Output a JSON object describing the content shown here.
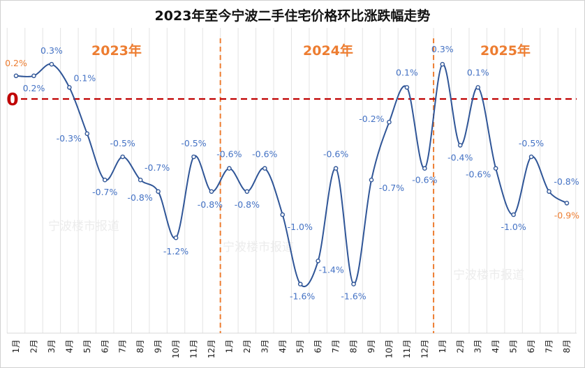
{
  "chart_data": {
    "type": "line",
    "title": "2023年至今宁波二手住宅价格环比涨跌幅走势",
    "xlabel": "",
    "ylabel": "",
    "ylim": [
      -2.0,
      0.4
    ],
    "grid": "vertical",
    "zero_label": "0",
    "year_labels": [
      "2023年",
      "2024年",
      "2025年"
    ],
    "watermark": "宁波楼市报道",
    "categories": [
      "1月",
      "2月",
      "3月",
      "4月",
      "5月",
      "6月",
      "7月",
      "8月",
      "9月",
      "10月",
      "11月",
      "12月",
      "1月",
      "2月",
      "3月",
      "4月",
      "5月",
      "6月",
      "7月",
      "8月",
      "9月",
      "10月",
      "11月",
      "12月",
      "1月",
      "2月",
      "3月",
      "4月",
      "5月",
      "6月",
      "7月",
      "8月"
    ],
    "series": [
      {
        "name": "环比涨跌幅",
        "values": [
          0.2,
          0.2,
          0.3,
          0.1,
          -0.3,
          -0.7,
          -0.5,
          -0.7,
          -0.8,
          -1.2,
          -0.5,
          -0.8,
          -0.6,
          -0.8,
          -0.6,
          -1.0,
          -1.6,
          -1.4,
          -0.6,
          -1.6,
          -0.7,
          -0.2,
          0.1,
          -0.6,
          0.3,
          -0.4,
          0.1,
          -0.6,
          -1.0,
          -0.5,
          -0.8,
          -0.9
        ],
        "labels": [
          "0.2%",
          "0.2%",
          "0.3%",
          "0.1%",
          "-0.3%",
          "-0.7%",
          "-0.5%",
          "-0.7%",
          "-0.8%",
          "-1.2%",
          "-0.5%",
          "-0.8%",
          "-0.6%",
          "-0.8%",
          "-0.6%",
          "-1.0%",
          "-1.6%",
          "-1.4%",
          "-0.6%",
          "-1.6%",
          "-0.7%",
          "-0.2%",
          "0.1%",
          "-0.6%",
          "0.3%",
          "-0.4%",
          "0.1%",
          "-0.6%",
          "-1.0%",
          "-0.5%",
          "-0.8%",
          "-0.9%"
        ]
      }
    ],
    "colors": {
      "line": "#2f5597",
      "label": "#4472c4",
      "highlight": "#ed7d31",
      "zero": "#c00000",
      "divider": "#ed7d31"
    }
  }
}
